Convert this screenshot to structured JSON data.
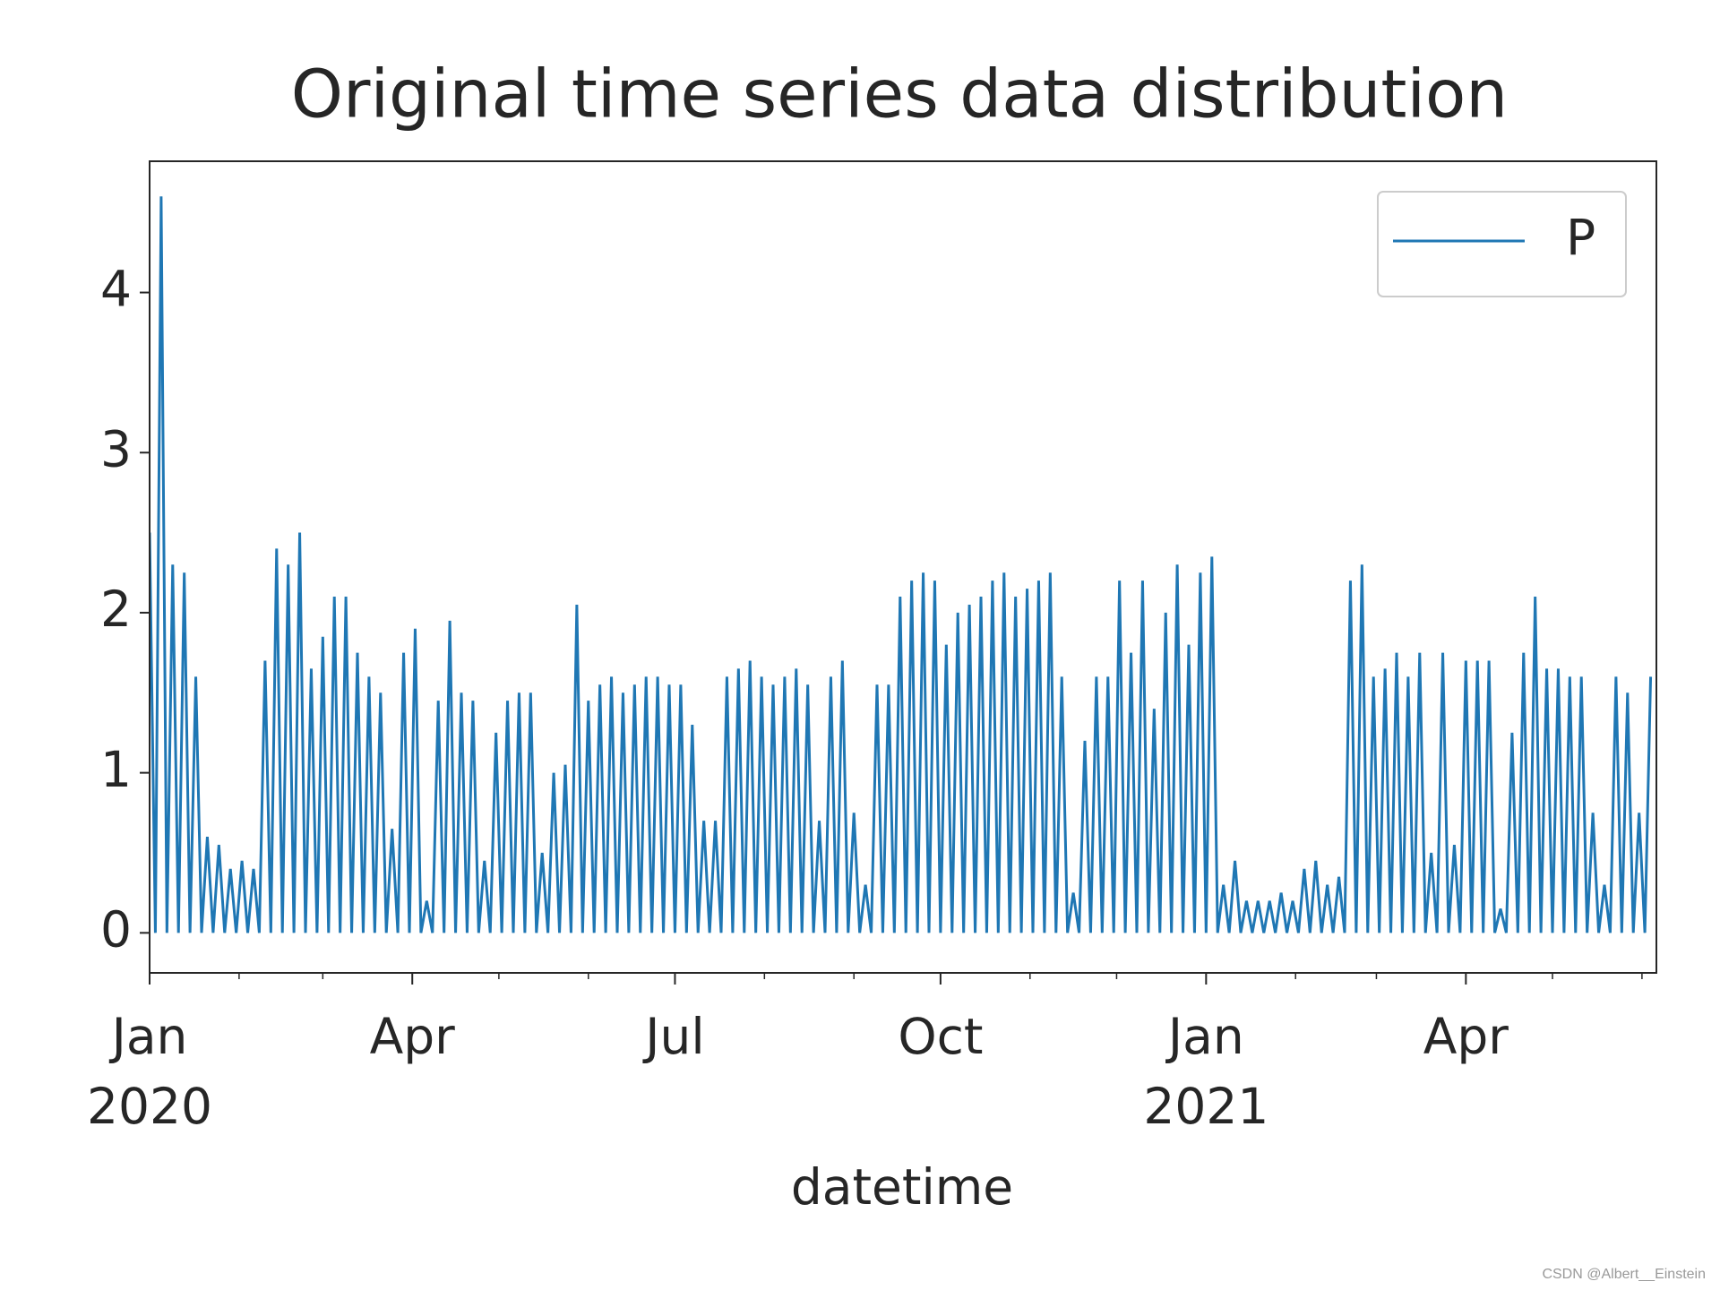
{
  "chart_data": {
    "type": "line",
    "title": "Original time series data distribution",
    "xlabel": "datetime",
    "x": [
      0,
      2,
      4,
      6,
      8,
      10,
      12,
      14,
      16,
      18,
      20,
      22,
      24,
      26,
      28,
      30,
      32,
      34,
      36,
      38,
      40,
      42,
      44,
      46,
      48,
      50,
      52,
      54,
      56,
      58,
      60,
      62,
      64,
      66,
      68,
      70,
      72,
      74,
      76,
      78,
      80,
      82,
      84,
      86,
      88,
      90,
      92,
      94,
      96,
      98,
      100,
      102,
      104,
      106,
      108,
      110,
      112,
      114,
      116,
      118,
      120,
      122,
      124,
      126,
      128,
      130,
      132,
      134,
      136,
      138,
      140,
      142,
      144,
      146,
      148,
      150,
      152,
      154,
      156,
      158,
      160,
      162,
      164,
      166,
      168,
      170,
      172,
      174,
      176,
      178,
      180,
      182,
      184,
      186,
      188,
      190,
      192,
      194,
      196,
      198,
      200,
      202,
      204,
      206,
      208,
      210,
      212,
      214,
      216,
      218,
      220,
      222,
      224,
      226,
      228,
      230,
      232,
      234,
      236,
      238,
      240,
      242,
      244,
      246,
      248,
      250,
      252,
      254,
      256,
      258,
      260,
      262,
      264,
      266,
      268,
      270,
      272,
      274,
      276,
      278,
      280,
      282,
      284,
      286,
      288,
      290,
      292,
      294,
      296,
      298,
      300,
      302,
      304,
      306,
      308,
      310,
      312,
      314,
      316,
      318,
      320,
      322,
      324,
      326,
      328,
      330,
      332,
      334,
      336,
      338,
      340,
      342,
      344,
      346,
      348,
      350,
      352,
      354,
      356,
      358,
      360,
      362,
      364,
      366,
      368,
      370,
      372,
      374,
      376,
      378,
      380,
      382,
      384,
      386,
      388,
      390,
      392,
      394,
      396,
      398,
      400,
      402,
      404,
      406,
      408,
      410,
      412,
      414,
      416,
      418,
      420,
      422,
      424,
      426,
      428,
      430,
      432,
      434,
      436,
      438,
      440,
      442,
      444,
      446,
      448,
      450,
      452,
      454,
      456,
      458,
      460,
      462,
      464,
      466,
      468,
      470,
      472,
      474,
      476,
      478,
      480,
      482,
      484,
      486,
      488,
      490,
      492,
      494,
      496,
      498,
      500,
      502,
      504,
      506,
      508,
      510,
      512,
      514,
      516,
      518,
      520
    ],
    "series": [
      {
        "name": "P",
        "color": "#1f77b4",
        "values": [
          2.5,
          0,
          4.6,
          0,
          2.3,
          0,
          2.25,
          0,
          1.6,
          0,
          0.6,
          0,
          0.55,
          0,
          0.4,
          0,
          0.45,
          0,
          0.4,
          0,
          1.7,
          0,
          2.4,
          0,
          2.3,
          0,
          2.5,
          0,
          1.65,
          0,
          1.85,
          0,
          2.1,
          0,
          2.1,
          0,
          1.75,
          0,
          1.6,
          0,
          1.5,
          0,
          0.65,
          0,
          1.75,
          0,
          1.9,
          0,
          0.2,
          0,
          1.45,
          0,
          1.95,
          0,
          1.5,
          0,
          1.45,
          0,
          0.45,
          0,
          1.25,
          0,
          1.45,
          0,
          1.5,
          0,
          1.5,
          0,
          0.5,
          0,
          1,
          0,
          1.05,
          0,
          2.05,
          0,
          1.45,
          0,
          1.55,
          0,
          1.6,
          0,
          1.5,
          0,
          1.55,
          0,
          1.6,
          0,
          1.6,
          0,
          1.55,
          0,
          1.55,
          0,
          1.3,
          0,
          0.7,
          0,
          0.7,
          0,
          1.6,
          0,
          1.65,
          0,
          1.7,
          0,
          1.6,
          0,
          1.55,
          0,
          1.6,
          0,
          1.65,
          0,
          1.55,
          0,
          0.7,
          0,
          1.6,
          0,
          1.7,
          0,
          0.75,
          0,
          0.3,
          0,
          1.55,
          0,
          1.55,
          0,
          2.1,
          0,
          2.2,
          0,
          2.25,
          0,
          2.2,
          0,
          1.8,
          0,
          2,
          0,
          2.05,
          0,
          2.1,
          0,
          2.2,
          0,
          2.25,
          0,
          2.1,
          0,
          2.15,
          0,
          2.2,
          0,
          2.25,
          0,
          1.6,
          0,
          0.25,
          0,
          1.2,
          0,
          1.6,
          0,
          1.6,
          0,
          2.2,
          0,
          1.75,
          0,
          2.2,
          0,
          1.4,
          0,
          2,
          0,
          2.3,
          0,
          1.8,
          0,
          2.25,
          0,
          2.35,
          0,
          0.3,
          0,
          0.45,
          0,
          0.2,
          0,
          0.2,
          0,
          0.2,
          0,
          0.25,
          0,
          0.2,
          0,
          0.4,
          0,
          0.45,
          0,
          0.3,
          0,
          0.35,
          0,
          2.2,
          0,
          2.3,
          0,
          1.6,
          0,
          1.65,
          0,
          1.75,
          0,
          1.6,
          0,
          1.75,
          0,
          0.5,
          0,
          1.75,
          0,
          0.55,
          0,
          1.7,
          0,
          1.7,
          0,
          1.7,
          0,
          0.15,
          0,
          1.25,
          0,
          1.75,
          0,
          2.1,
          0,
          1.65,
          0,
          1.65,
          0,
          1.6,
          0,
          1.6,
          0,
          0.75,
          0,
          0.3,
          0,
          1.6,
          0,
          1.5,
          0,
          0.75,
          0,
          1.6
        ]
      }
    ],
    "xlim": [
      0,
      522
    ],
    "xticks": [
      {
        "value": 0,
        "label": "Jan\n2020"
      },
      {
        "value": 91,
        "label": "Apr"
      },
      {
        "value": 182,
        "label": "Jul"
      },
      {
        "value": 274,
        "label": "Oct"
      },
      {
        "value": 366,
        "label": "Jan\n2021"
      },
      {
        "value": 456,
        "label": "Apr"
      }
    ],
    "xminorticks": [
      31,
      60,
      121,
      152,
      213,
      244,
      305,
      335,
      397,
      425,
      486,
      517
    ],
    "ylim": [
      -0.25,
      4.82
    ],
    "yticks": [
      0,
      1,
      2,
      3,
      4
    ],
    "legend": "upper right",
    "grid": false
  },
  "watermark": "CSDN @Albert__Einstein"
}
